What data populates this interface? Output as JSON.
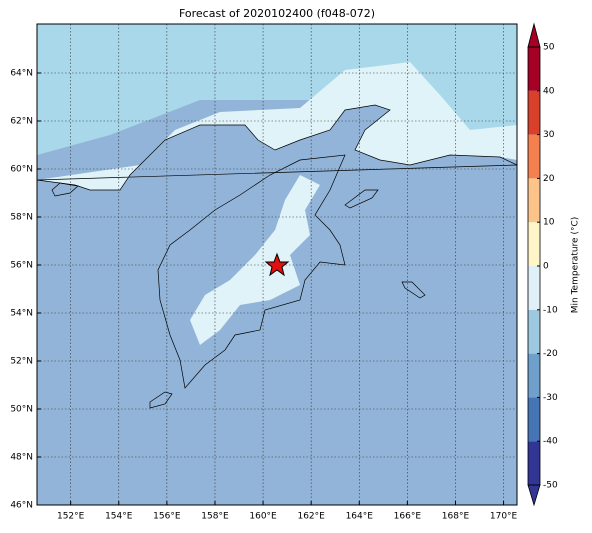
{
  "title": "Forecast of 2020102400 (f048-072)",
  "xticks": [
    {
      "value": 152,
      "label": "152°E"
    },
    {
      "value": 154,
      "label": "154°E"
    },
    {
      "value": 156,
      "label": "156°E"
    },
    {
      "value": 158,
      "label": "158°E"
    },
    {
      "value": 160,
      "label": "160°E"
    },
    {
      "value": 162,
      "label": "162°E"
    },
    {
      "value": 164,
      "label": "164°E"
    },
    {
      "value": 166,
      "label": "166°E"
    },
    {
      "value": 168,
      "label": "168°E"
    },
    {
      "value": 170,
      "label": "170°E"
    }
  ],
  "yticks": [
    {
      "value": 46,
      "label": "46°N"
    },
    {
      "value": 48,
      "label": "48°N"
    },
    {
      "value": 50,
      "label": "50°N"
    },
    {
      "value": 52,
      "label": "52°N"
    },
    {
      "value": 54,
      "label": "54°N"
    },
    {
      "value": 56,
      "label": "56°N"
    },
    {
      "value": 58,
      "label": "58°N"
    },
    {
      "value": 60,
      "label": "60°N"
    },
    {
      "value": 62,
      "label": "62°N"
    },
    {
      "value": 64,
      "label": "64°N"
    }
  ],
  "colorbar": {
    "label": "Min Temperature (°C)",
    "ticks": [
      -50,
      -40,
      -30,
      -20,
      -10,
      0,
      10,
      20,
      30,
      40,
      50
    ],
    "colors": [
      "#313695",
      "#4575b4",
      "#6f9fcb",
      "#9ec8e0",
      "#dff0f7",
      "#fff6c8",
      "#fdc48a",
      "#f4804f",
      "#d8402c",
      "#a50026"
    ]
  }
}
